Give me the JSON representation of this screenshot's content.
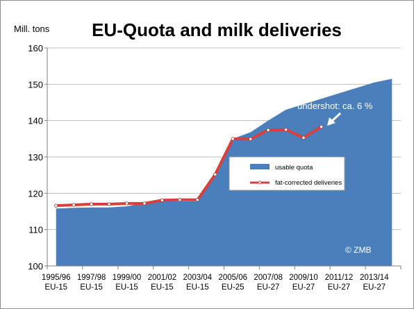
{
  "chart_data": {
    "type": "area",
    "title": "EU-Quota and milk deliveries",
    "ylabel": "Mill. tons",
    "ylim": [
      100,
      160
    ],
    "yticks": [
      100,
      110,
      120,
      130,
      140,
      150,
      160
    ],
    "x_index_range": [
      0,
      19
    ],
    "tick_labels": [
      {
        "line1": "1995/96",
        "line2": "EU-15"
      },
      {
        "line1": "1997/98",
        "line2": "EU-15"
      },
      {
        "line1": "1999/00",
        "line2": "EU-15"
      },
      {
        "line1": "2001/02",
        "line2": "EU-15"
      },
      {
        "line1": "2003/04",
        "line2": "EU-15"
      },
      {
        "line1": "2005/06",
        "line2": "EU-25"
      },
      {
        "line1": "2007/08",
        "line2": "EU-27"
      },
      {
        "line1": "2009/10",
        "line2": "EU-27"
      },
      {
        "line1": "2011/12",
        "line2": "EU-27"
      },
      {
        "line1": "2013/14",
        "line2": "EU-27"
      }
    ],
    "series": [
      {
        "name": "usable quota",
        "type": "area",
        "color": "#4a7fbc",
        "x": [
          0,
          1,
          2,
          3,
          4,
          5,
          6,
          7,
          8,
          9,
          10,
          11,
          12,
          13,
          14,
          15,
          16,
          17,
          18,
          19
        ],
        "values": [
          115.8,
          116,
          116.1,
          116.1,
          116.4,
          117.4,
          117.8,
          117.8,
          117.8,
          125,
          135,
          136.8,
          140,
          143,
          144.5,
          146,
          147.5,
          149,
          150.5,
          151.5
        ]
      },
      {
        "name": "fat-corrected deliveries",
        "type": "line",
        "color": "#d9403b",
        "x": [
          0,
          1,
          2,
          3,
          4,
          5,
          6,
          7,
          8,
          9,
          10,
          11,
          12,
          13,
          14,
          15
        ],
        "values": [
          116.6,
          116.8,
          117,
          117,
          117.2,
          117.2,
          118.1,
          118.2,
          118.2,
          125.2,
          135,
          134.9,
          137.4,
          137.5,
          135.3,
          138.3
        ]
      }
    ],
    "annotations": [
      {
        "text": "undershot: ca. 6 %",
        "color": "#ffffff"
      },
      {
        "text": "© ZMB",
        "color": "#ffffff"
      }
    ],
    "legend_position": "center-right",
    "grid": true
  }
}
